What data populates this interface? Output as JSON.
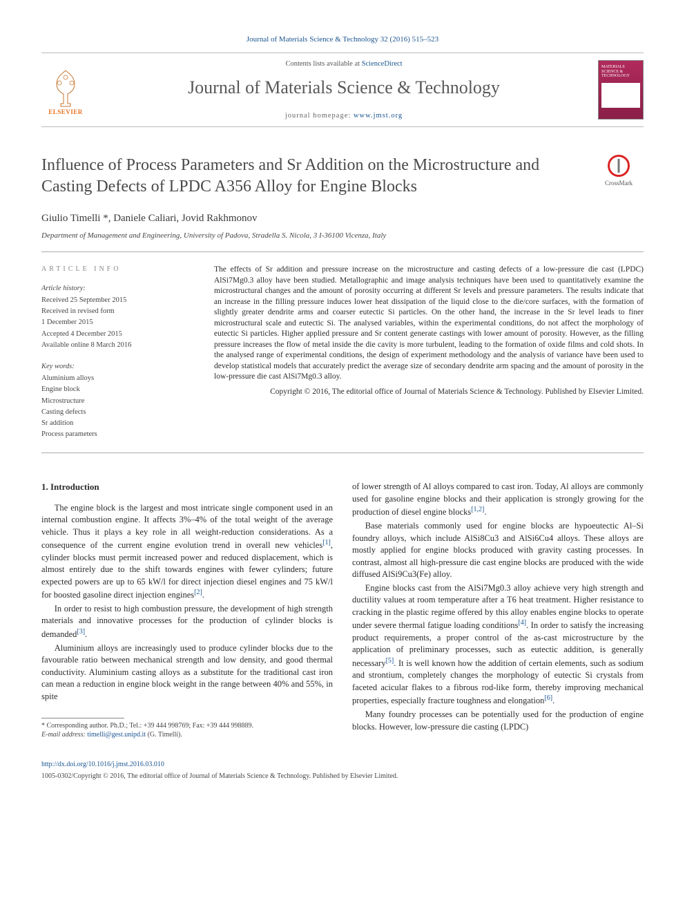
{
  "citation": "Journal of Materials Science & Technology 32 (2016) 515–523",
  "masthead": {
    "contents_prefix": "Contents lists available at ",
    "contents_link": "ScienceDirect",
    "journal_name": "Journal of Materials Science & Technology",
    "homepage_prefix": "journal homepage: ",
    "homepage_url": "www.jmst.org",
    "publisher_label": "ELSEVIER",
    "cover_text": "MATERIALS SCIENCE & TECHNOLOGY"
  },
  "article": {
    "title": "Influence of Process Parameters and Sr Addition on the Microstructure and Casting Defects of LPDC A356 Alloy for Engine Blocks",
    "crossmark_label": "CrossMark",
    "authors": "Giulio Timelli *, Daniele Caliari, Jovid Rakhmonov",
    "affiliation": "Department of Management and Engineering, University of Padova, Stradella S. Nicola, 3 I-36100 Vicenza, Italy"
  },
  "info": {
    "heading": "ARTICLE INFO",
    "history_label": "Article history:",
    "history": [
      "Received 25 September 2015",
      "Received in revised form",
      "1 December 2015",
      "Accepted 4 December 2015",
      "Available online 8 March 2016"
    ],
    "keywords_label": "Key words:",
    "keywords": [
      "Aluminium alloys",
      "Engine block",
      "Microstructure",
      "Casting defects",
      "Sr addition",
      "Process parameters"
    ]
  },
  "abstract": {
    "text": "The effects of Sr addition and pressure increase on the microstructure and casting defects of a low-pressure die cast (LPDC) AlSi7Mg0.3 alloy have been studied. Metallographic and image analysis techniques have been used to quantitatively examine the microstructural changes and the amount of porosity occurring at different Sr levels and pressure parameters. The results indicate that an increase in the filling pressure induces lower heat dissipation of the liquid close to the die/core surfaces, with the formation of slightly greater dendrite arms and coarser eutectic Si particles. On the other hand, the increase in the Sr level leads to finer microstructural scale and eutectic Si. The analysed variables, within the experimental conditions, do not affect the morphology of eutectic Si particles. Higher applied pressure and Sr content generate castings with lower amount of porosity. However, as the filling pressure increases the flow of metal inside the die cavity is more turbulent, leading to the formation of oxide films and cold shots. In the analysed range of experimental conditions, the design of experiment methodology and the analysis of variance have been used to develop statistical models that accurately predict the average size of secondary dendrite arm spacing and the amount of porosity in the low-pressure die cast AlSi7Mg0.3 alloy.",
    "copyright": "Copyright © 2016, The editorial office of Journal of Materials Science & Technology. Published by Elsevier Limited."
  },
  "body": {
    "section_heading": "1. Introduction",
    "p1": "The engine block is the largest and most intricate single component used in an internal combustion engine. It affects 3%–4% of the total weight of the average vehicle. Thus it plays a key role in all weight-reduction considerations. As a consequence of the current engine evolution trend in overall new vehicles[1], cylinder blocks must permit increased power and reduced displacement, which is almost entirely due to the shift towards engines with fewer cylinders; future expected powers are up to 65 kW/l for direct injection diesel engines and 75 kW/l for boosted gasoline direct injection engines[2].",
    "p2": "In order to resist to high combustion pressure, the development of high strength materials and innovative processes for the production of cylinder blocks is demanded[3].",
    "p3": "Aluminium alloys are increasingly used to produce cylinder blocks due to the favourable ratio between mechanical strength and low density, and good thermal conductivity. Aluminium casting alloys as a substitute for the traditional cast iron can mean a reduction in engine block weight in the range between 40% and 55%, in spite",
    "p4": "of lower strength of Al alloys compared to cast iron. Today, Al alloys are commonly used for gasoline engine blocks and their application is strongly growing for the production of diesel engine blocks[1,2].",
    "p5": "Base materials commonly used for engine blocks are hypoeutectic Al–Si foundry alloys, which include AlSi8Cu3 and AlSi6Cu4 alloys. These alloys are mostly applied for engine blocks produced with gravity casting processes. In contrast, almost all high-pressure die cast engine blocks are produced with the wide diffused AlSi9Cu3(Fe) alloy.",
    "p6": "Engine blocks cast from the AlSi7Mg0.3 alloy achieve very high strength and ductility values at room temperature after a T6 heat treatment. Higher resistance to cracking in the plastic regime offered by this alloy enables engine blocks to operate under severe thermal fatigue loading conditions[4]. In order to satisfy the increasing product requirements, a proper control of the as-cast microstructure by the application of preliminary processes, such as eutectic addition, is generally necessary[5]. It is well known how the addition of certain elements, such as sodium and strontium, completely changes the morphology of eutectic Si crystals from faceted acicular flakes to a fibrous rod-like form, thereby improving mechanical properties, especially fracture toughness and elongation[6].",
    "p7": "Many foundry processes can be potentially used for the production of engine blocks. However, low-pressure die casting (LPDC)"
  },
  "footnote": {
    "line1": "* Corresponding author. Ph.D.; Tel.: +39 444 998769; Fax: +39 444 998889.",
    "line2_prefix": "E-mail address: ",
    "email": "timelli@gest.unipd.it",
    "line2_suffix": " (G. Timelli)."
  },
  "footer": {
    "doi": "http://dx.doi.org/10.1016/j.jmst.2016.03.010",
    "issn_line": "1005-0302/Copyright © 2016, The editorial office of Journal of Materials Science & Technology. Published by Elsevier Limited."
  },
  "colors": {
    "link": "#1a5490",
    "accent": "#e9711c",
    "cover": "#b02a5a",
    "rule": "#aaaaaa",
    "text": "#2a2a2a"
  }
}
